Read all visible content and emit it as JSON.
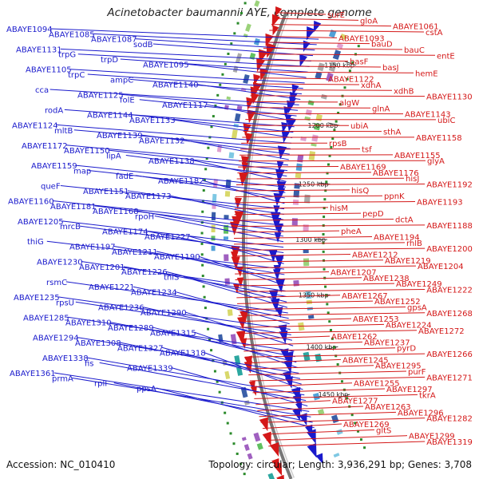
{
  "title": "Acinetobacter baumannii AYE, complete genome",
  "accession": "Accession: NC_010410",
  "summary": "Topology: circular; Length: 3,936,291 bp; Genes: 3,708",
  "colors": {
    "forward": "#1a1acc",
    "reverse": "#d41818",
    "backbone": "#777777"
  },
  "ticks": [
    "1150 kbp",
    "1200 kbp",
    "1250 kbp",
    "1300 kbp",
    "1350 kbp",
    "1400 kbp",
    "1450 kbp"
  ],
  "left_labels": [
    "ABAYE1094",
    "ABAYE1085",
    "ABAYE1087",
    "sodB",
    "ABAYE1131",
    "trpG",
    "trpD",
    "ABAYE1095",
    "ABAYE1105",
    "trpC",
    "ampC",
    "ABAYE1140",
    "cca",
    "ABAYE1125",
    "folE",
    "ABAYE1117",
    "rodA",
    "ABAYE1144",
    "ABAYE1133",
    "ABAYE1124",
    "mltB",
    "ABAYE1139",
    "ABAYE1132",
    "ABAYE1172",
    "ABAYE1150",
    "lipA",
    "ABAYE1138",
    "ABAYE1159",
    "map",
    "fadE",
    "ABAYE1182",
    "queF",
    "ABAYE1151",
    "ABAYE1173",
    "ABAYE1160",
    "ABAYE1181",
    "ABAYE1168",
    "rpoH",
    "ABAYE1205",
    "mrcB",
    "ABAYE1174",
    "ABAYE1227",
    "thiG",
    "ABAYE1197",
    "ABAYE1211",
    "ABAYE1190",
    "ABAYE1230",
    "ABAYE1201",
    "ABAYE1226",
    "thiS",
    "rsmC",
    "ABAYE1221",
    "ABAYE1234",
    "ABAYE1235",
    "rpsU",
    "ABAYE1236",
    "ABAYE1290",
    "ABAYE1285",
    "ABAYE1310",
    "ABAYE1289",
    "ABAYE1315",
    "ABAYE1294",
    "ABAYE1308",
    "ABAYE1327",
    "ABAYE1318",
    "ABAYE1338",
    "fis",
    "ABAYE1339",
    "ABAYE1361",
    "prmA",
    "rplI",
    "ppsA"
  ],
  "right_labels": [
    "surE",
    "gloA",
    "ABAYE1061",
    "cstA",
    "ABAYE1093",
    "bauD",
    "bauC",
    "entE",
    "basF",
    "basJ",
    "hemE",
    "ABAYE1122",
    "xdhA",
    "xdhB",
    "ABAYE1130",
    "algW",
    "glnA",
    "ABAYE1143",
    "ubiC",
    "ubiA",
    "sthA",
    "ABAYE1158",
    "rpsB",
    "tsf",
    "ABAYE1155",
    "glyA",
    "ABAYE1169",
    "ABAYE1176",
    "hisJ",
    "ABAYE1192",
    "hisQ",
    "ppnK",
    "ABAYE1193",
    "hisM",
    "pepD",
    "dctA",
    "ABAYE1188",
    "pheA",
    "ABAYE1194",
    "rhlB",
    "ABAYE1200",
    "ABAYE1212",
    "ABAYE1219",
    "ABAYE1204",
    "ABAYE1207",
    "ABAYE1238",
    "ABAYE1249",
    "ABAYE1222",
    "ABAYE1267",
    "ABAYE1252",
    "gpsA",
    "ABAYE1268",
    "ABAYE1253",
    "ABAYE1224",
    "ABAYE1272",
    "ABAYE1262",
    "ABAYE1237",
    "pyrD",
    "ABAYE1266",
    "ABAYE1245",
    "ABAYE1295",
    "purF",
    "ABAYE1271",
    "ABAYE1255",
    "ABAYE1297",
    "tkrA",
    "ABAYE1277",
    "ABAYE1263",
    "ABAYE1296",
    "ABAYE1282",
    "ABAYE1269",
    "gltS",
    "ABAYE1299",
    "ABAYE1319"
  ]
}
